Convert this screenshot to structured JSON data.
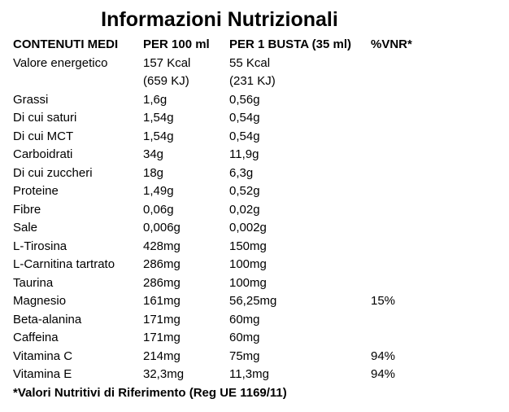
{
  "title": "Informazioni Nutrizionali",
  "table": {
    "header": [
      "CONTENUTI MEDI",
      "PER 100 ml",
      "PER 1 BUSTA (35 ml)",
      "%VNR*"
    ],
    "rows": [
      [
        "Valore energetico",
        [
          "157 Kcal",
          "(659 KJ)"
        ],
        [
          "55 Kcal",
          "(231 KJ)"
        ]
      ],
      [
        "Grassi",
        "1,6g",
        "0,56g"
      ],
      [
        "Di cui saturi",
        "1,54g",
        "0,54g"
      ],
      [
        "Di cui MCT",
        "1,54g",
        "0,54g"
      ],
      [
        "Carboidrati",
        "34g",
        "11,9g"
      ],
      [
        "Di cui zuccheri",
        "18g",
        "6,3g"
      ],
      [
        "Proteine",
        "1,49g",
        "0,52g"
      ],
      [
        "Fibre",
        "0,06g",
        "0,02g"
      ],
      [
        "Sale",
        "0,006g",
        "0,002g"
      ],
      [
        "L-Tirosina",
        "428mg",
        "150mg"
      ],
      [
        "L-Carnitina tartrato",
        "286mg",
        "100mg"
      ],
      [
        "Taurina",
        "286mg",
        "100mg"
      ],
      [
        "Magnesio",
        "161mg",
        "56,25mg",
        "15%"
      ],
      [
        "Beta-alanina",
        "171mg",
        "60mg"
      ],
      [
        "Caffeina",
        "171mg",
        "60mg"
      ],
      [
        "Vitamina C",
        "214mg",
        "75mg",
        "94%"
      ],
      [
        "Vitamina E",
        "32,3mg",
        "11,3mg",
        "94%"
      ]
    ]
  },
  "footnote": "*Valori Nutritivi di Riferimento (Reg UE 1169/11)"
}
